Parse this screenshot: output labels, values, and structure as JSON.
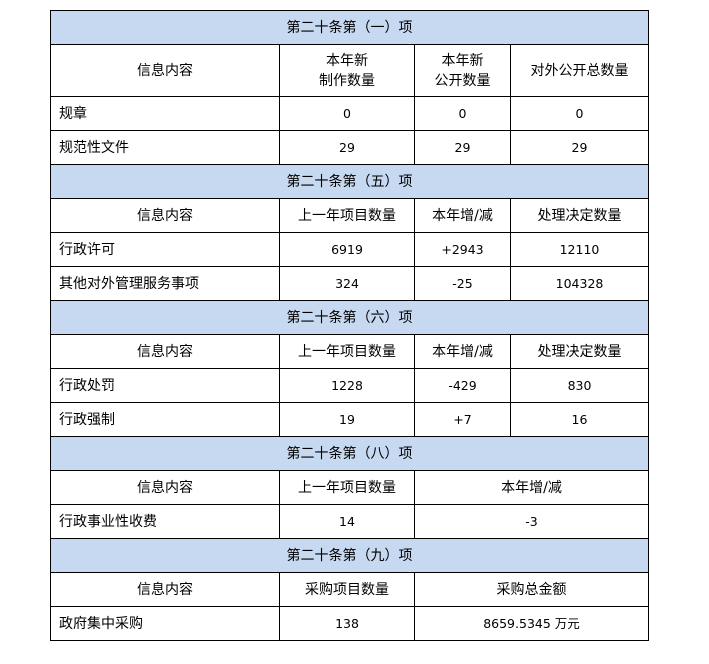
{
  "sections": [
    {
      "title": "第二十条第（一）项",
      "headers": [
        "信息内容",
        "本年新\n制作数量",
        "本年新\n公开数量",
        "对外公开总数量"
      ],
      "rows": [
        [
          "规章",
          "0",
          "0",
          "0"
        ],
        [
          "规范性文件",
          "29",
          "29",
          "29"
        ]
      ]
    },
    {
      "title": "第二十条第（五）项",
      "headers": [
        "信息内容",
        "上一年项目数量",
        "本年增/减",
        "处理决定数量"
      ],
      "rows": [
        [
          "行政许可",
          "6919",
          "+2943",
          "12110"
        ],
        [
          "其他对外管理服务事项",
          "324",
          "-25",
          "104328"
        ]
      ]
    },
    {
      "title": "第二十条第（六）项",
      "headers": [
        "信息内容",
        "上一年项目数量",
        "本年增/减",
        "处理决定数量"
      ],
      "rows": [
        [
          "行政处罚",
          "1228",
          "-429",
          "830"
        ],
        [
          "行政强制",
          "19",
          "+7",
          "16"
        ]
      ]
    },
    {
      "title": "第二十条第（八）项",
      "headers": [
        "信息内容",
        "上一年项目数量",
        "本年增/减"
      ],
      "rows": [
        [
          "行政事业性收费",
          "14",
          "-3"
        ]
      ]
    },
    {
      "title": "第二十条第（九）项",
      "headers": [
        "信息内容",
        "采购项目数量",
        "采购总金额"
      ],
      "rows": [
        [
          "政府集中采购",
          "138",
          "8659.5345 万元"
        ]
      ]
    }
  ],
  "colors": {
    "section_header_bg": "#c6d9f0",
    "border": "#000000"
  }
}
